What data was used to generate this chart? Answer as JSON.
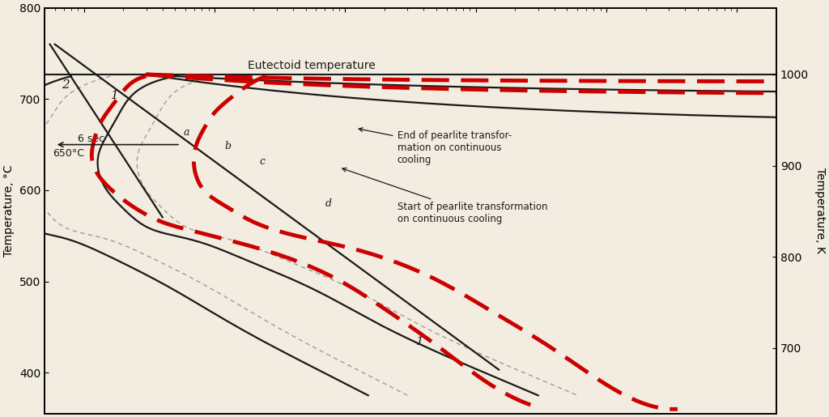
{
  "bg_color": "#f2ede0",
  "eutectoid_temp_C": 727,
  "ylim_C": [
    355,
    800
  ],
  "ylabel_left": "Temperature, °C",
  "ylabel_right": "Temperature, K",
  "yticks_C": [
    400,
    500,
    600,
    700,
    800
  ],
  "yticks_K": [
    700,
    800,
    900,
    1000
  ],
  "label_650": "650°C",
  "label_6sec": "6 sec",
  "annotation_end": "End of pearlite transfor-\nmation on continuous\ncooling",
  "annotation_start": "Start of pearlite transformation\non continuous cooling",
  "line_color": "#1a1a1a",
  "red_color": "#cc0000",
  "gray_color": "#888888"
}
